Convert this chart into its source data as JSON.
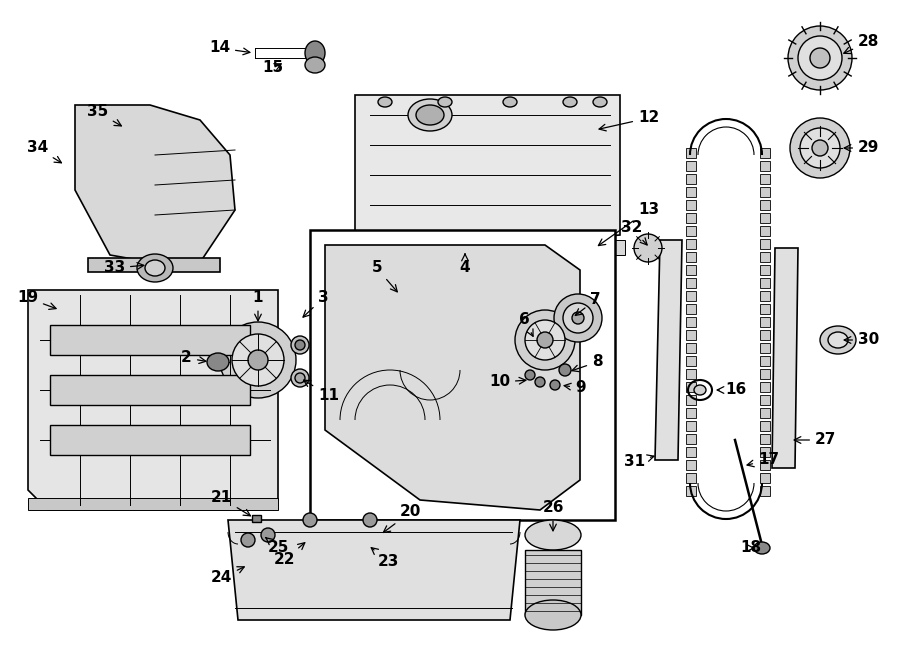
{
  "title": "",
  "bg_color": "#ffffff",
  "line_color": "#000000",
  "label_fontsize": 11
}
